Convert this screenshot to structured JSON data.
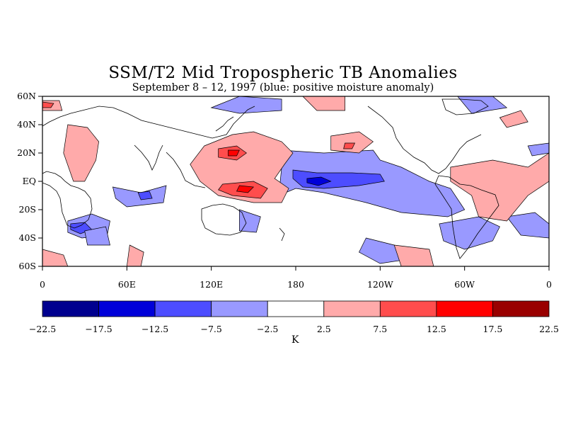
{
  "title": "SSM/T2 Mid Tropospheric TB Anomalies",
  "subtitle": "September 8 – 12, 1997 (blue: positive moisture anomaly)",
  "map": {
    "lat_ticks": [
      "60N",
      "40N",
      "20N",
      "EQ",
      "20S",
      "40S",
      "60S"
    ],
    "lon_ticks": [
      "0",
      "60E",
      "120E",
      "180",
      "120W",
      "60W",
      "0"
    ],
    "lat_values": [
      60,
      40,
      20,
      0,
      -20,
      -40,
      -60
    ],
    "lon_values": [
      0,
      60,
      120,
      180,
      240,
      300,
      360
    ]
  },
  "colorbar": {
    "unit": "K",
    "levels": [
      "−22.5",
      "−17.5",
      "−12.5",
      "−7.5",
      "−2.5",
      "2.5",
      "7.5",
      "12.5",
      "17.5",
      "22.5"
    ],
    "colors": [
      "#00008f",
      "#0000d9",
      "#4d4dff",
      "#9999ff",
      "#ffffff",
      "#ffaaaa",
      "#ff4d4d",
      "#ff0000",
      "#990000"
    ]
  },
  "anomaly_regions": [
    {
      "level": "neg",
      "color": "#9999ff",
      "lon": [
        [
          170,
          22
        ],
        [
          200,
          20
        ],
        [
          235,
          22
        ],
        [
          240,
          15
        ],
        [
          255,
          10
        ],
        [
          275,
          0
        ],
        [
          290,
          -5
        ],
        [
          300,
          -20
        ],
        [
          288,
          -25
        ],
        [
          255,
          -22
        ],
        [
          230,
          -15
        ],
        [
          200,
          -8
        ],
        [
          180,
          -5
        ],
        [
          168,
          -10
        ],
        [
          170,
          10
        ]
      ]
    },
    {
      "level": "neg2",
      "color": "#4d4dff",
      "lon": [
        [
          178,
          8
        ],
        [
          195,
          6
        ],
        [
          220,
          6
        ],
        [
          240,
          5
        ],
        [
          243,
          0
        ],
        [
          225,
          -3
        ],
        [
          200,
          -5
        ],
        [
          185,
          -4
        ],
        [
          178,
          2
        ]
      ]
    },
    {
      "level": "neg3",
      "color": "#0000d9",
      "lon": [
        [
          188,
          2
        ],
        [
          198,
          3
        ],
        [
          205,
          0
        ],
        [
          196,
          -3
        ],
        [
          188,
          -1
        ]
      ]
    },
    {
      "level": "neg",
      "color": "#9999ff",
      "lon": [
        [
          18,
          -28
        ],
        [
          35,
          -23
        ],
        [
          48,
          -28
        ],
        [
          46,
          -38
        ],
        [
          28,
          -40
        ],
        [
          18,
          -36
        ]
      ]
    },
    {
      "level": "neg2",
      "color": "#4d4dff",
      "lon": [
        [
          20,
          -30
        ],
        [
          30,
          -29
        ],
        [
          35,
          -34
        ],
        [
          27,
          -37
        ],
        [
          20,
          -34
        ]
      ]
    },
    {
      "level": "neg",
      "color": "#9999ff",
      "lon": [
        [
          50,
          -4
        ],
        [
          70,
          -8
        ],
        [
          88,
          -3
        ],
        [
          86,
          -15
        ],
        [
          60,
          -18
        ],
        [
          52,
          -12
        ]
      ]
    },
    {
      "level": "neg2",
      "color": "#4d4dff",
      "lon": [
        [
          68,
          -8
        ],
        [
          76,
          -7
        ],
        [
          78,
          -12
        ],
        [
          70,
          -13
        ]
      ]
    },
    {
      "level": "neg",
      "color": "#9999ff",
      "lon": [
        [
          120,
          52
        ],
        [
          140,
          60
        ],
        [
          170,
          58
        ],
        [
          170,
          50
        ],
        [
          140,
          48
        ]
      ]
    },
    {
      "level": "neg",
      "color": "#9999ff",
      "lon": [
        [
          282,
          -30
        ],
        [
          310,
          -25
        ],
        [
          325,
          -32
        ],
        [
          320,
          -42
        ],
        [
          300,
          -48
        ],
        [
          285,
          -42
        ]
      ]
    },
    {
      "level": "neg",
      "color": "#9999ff",
      "lon": [
        [
          330,
          -25
        ],
        [
          350,
          -22
        ],
        [
          360,
          -30
        ],
        [
          360,
          -40
        ],
        [
          340,
          -38
        ]
      ]
    },
    {
      "level": "neg",
      "color": "#9999ff",
      "lon": [
        [
          140,
          -20
        ],
        [
          155,
          -25
        ],
        [
          152,
          -36
        ],
        [
          140,
          -35
        ]
      ]
    },
    {
      "level": "neg",
      "color": "#9999ff",
      "lon": [
        [
          230,
          -40
        ],
        [
          250,
          -45
        ],
        [
          260,
          -55
        ],
        [
          240,
          -58
        ],
        [
          225,
          -50
        ]
      ]
    },
    {
      "level": "neg",
      "color": "#9999ff",
      "lon": [
        [
          295,
          60
        ],
        [
          320,
          60
        ],
        [
          330,
          52
        ],
        [
          305,
          48
        ]
      ]
    },
    {
      "level": "neg",
      "color": "#9999ff",
      "lon": [
        [
          345,
          25
        ],
        [
          360,
          27
        ],
        [
          360,
          20
        ],
        [
          348,
          18
        ]
      ]
    },
    {
      "level": "neg",
      "color": "#9999ff",
      "lon": [
        [
          30,
          -35
        ],
        [
          45,
          -32
        ],
        [
          48,
          -45
        ],
        [
          32,
          -45
        ]
      ]
    },
    {
      "level": "pos",
      "color": "#ffaaaa",
      "lon": [
        [
          115,
          25
        ],
        [
          135,
          33
        ],
        [
          150,
          35
        ],
        [
          170,
          28
        ],
        [
          178,
          20
        ],
        [
          172,
          12
        ],
        [
          165,
          2
        ],
        [
          175,
          -5
        ],
        [
          170,
          -15
        ],
        [
          150,
          -15
        ],
        [
          125,
          -10
        ],
        [
          112,
          0
        ],
        [
          105,
          12
        ]
      ]
    },
    {
      "level": "pos2",
      "color": "#ff4d4d",
      "lon": [
        [
          125,
          23
        ],
        [
          138,
          25
        ],
        [
          145,
          20
        ],
        [
          138,
          15
        ],
        [
          125,
          17
        ]
      ]
    },
    {
      "level": "pos2",
      "color": "#ff4d4d",
      "lon": [
        [
          128,
          -2
        ],
        [
          150,
          0
        ],
        [
          160,
          -5
        ],
        [
          155,
          -12
        ],
        [
          135,
          -10
        ],
        [
          125,
          -6
        ]
      ]
    },
    {
      "level": "pos3",
      "color": "#ff0000",
      "lon": [
        [
          132,
          22
        ],
        [
          140,
          22
        ],
        [
          138,
          18
        ],
        [
          132,
          18
        ]
      ]
    },
    {
      "level": "pos3",
      "color": "#ff0000",
      "lon": [
        [
          140,
          -3
        ],
        [
          150,
          -4
        ],
        [
          146,
          -8
        ],
        [
          138,
          -7
        ]
      ]
    },
    {
      "level": "pos",
      "color": "#ffaaaa",
      "lon": [
        [
          18,
          40
        ],
        [
          32,
          38
        ],
        [
          40,
          28
        ],
        [
          38,
          15
        ],
        [
          30,
          0
        ],
        [
          22,
          0
        ],
        [
          15,
          20
        ]
      ]
    },
    {
      "level": "pos",
      "color": "#ffaaaa",
      "lon": [
        [
          290,
          10
        ],
        [
          320,
          15
        ],
        [
          345,
          10
        ],
        [
          360,
          20
        ],
        [
          360,
          0
        ],
        [
          345,
          -10
        ],
        [
          330,
          -28
        ],
        [
          310,
          -25
        ],
        [
          305,
          -10
        ],
        [
          290,
          0
        ]
      ]
    },
    {
      "level": "pos",
      "color": "#ffaaaa",
      "lon": [
        [
          205,
          32
        ],
        [
          225,
          35
        ],
        [
          235,
          28
        ],
        [
          225,
          20
        ],
        [
          205,
          22
        ]
      ]
    },
    {
      "level": "pos2",
      "color": "#ff4d4d",
      "lon": [
        [
          215,
          27
        ],
        [
          222,
          27
        ],
        [
          220,
          23
        ],
        [
          214,
          23
        ]
      ]
    },
    {
      "level": "pos",
      "color": "#ffaaaa",
      "lon": [
        [
          0,
          57
        ],
        [
          12,
          57
        ],
        [
          14,
          50
        ],
        [
          0,
          50
        ]
      ]
    },
    {
      "level": "pos2",
      "color": "#ff4d4d",
      "lon": [
        [
          0,
          56
        ],
        [
          8,
          55
        ],
        [
          6,
          52
        ],
        [
          0,
          52
        ]
      ]
    },
    {
      "level": "pos",
      "color": "#ffaaaa",
      "lon": [
        [
          0,
          -48
        ],
        [
          15,
          -52
        ],
        [
          18,
          -60
        ],
        [
          0,
          -60
        ]
      ]
    },
    {
      "level": "pos",
      "color": "#ffaaaa",
      "lon": [
        [
          250,
          -45
        ],
        [
          275,
          -48
        ],
        [
          278,
          -60
        ],
        [
          255,
          -60
        ]
      ]
    },
    {
      "level": "pos",
      "color": "#ffaaaa",
      "lon": [
        [
          185,
          60
        ],
        [
          215,
          60
        ],
        [
          215,
          50
        ],
        [
          195,
          50
        ]
      ]
    },
    {
      "level": "pos",
      "color": "#ffaaaa",
      "lon": [
        [
          325,
          45
        ],
        [
          340,
          50
        ],
        [
          345,
          42
        ],
        [
          330,
          38
        ]
      ]
    },
    {
      "level": "pos",
      "color": "#ffaaaa",
      "lon": [
        [
          62,
          -45
        ],
        [
          72,
          -50
        ],
        [
          70,
          -60
        ],
        [
          60,
          -60
        ]
      ]
    }
  ]
}
